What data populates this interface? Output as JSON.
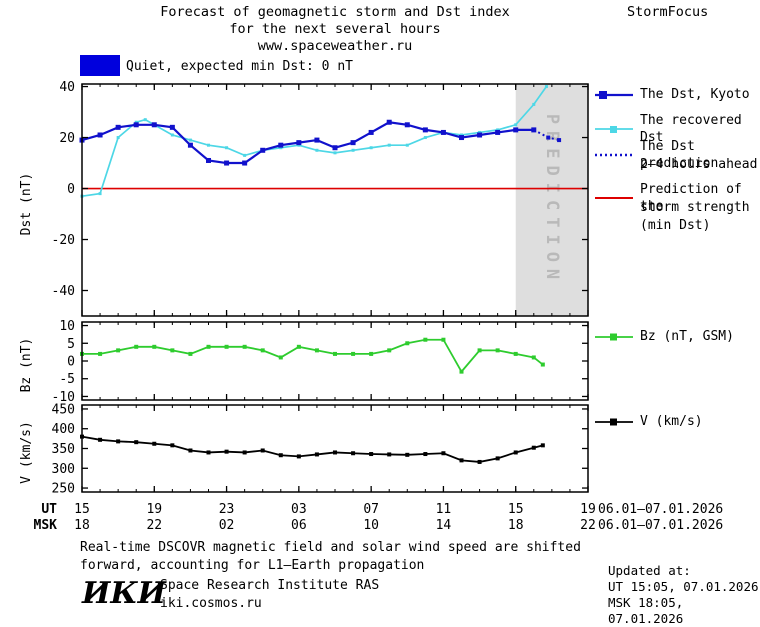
{
  "title": {
    "line1": "Forecast of geomagnetic storm and Dst index",
    "line2": "for the next several hours",
    "line3": "www.spaceweather.ru",
    "brand": "StormFocus"
  },
  "status_banner": {
    "color": "#0000dd",
    "label": "Quiet, expected min Dst: 0 nT"
  },
  "colors": {
    "dst": "#1111cc",
    "recovered": "#4dd7e6",
    "prediction": "#1111cc",
    "strength": "#dd0000",
    "bz": "#2ecc2e",
    "v": "#000000",
    "band": "#dedede",
    "band_text": "#b9b9b9"
  },
  "legend": {
    "dst_kyoto": "The Dst, Kyoto",
    "recovered": "The recovered Dst",
    "prediction_line1": "The Dst prediction",
    "prediction_line2": "2–4 hours ahead",
    "strength_line1": "Prediction of the",
    "strength_line2": "storm strength",
    "strength_line3": "(min Dst)",
    "bz": "Bz (nT, GSM)",
    "v": "V (km/s)"
  },
  "axes": {
    "ut_label": "UT",
    "msk_label": "MSK",
    "ut_ticks": [
      "15",
      "19",
      "23",
      "03",
      "07",
      "11",
      "15",
      "19"
    ],
    "msk_ticks": [
      "18",
      "22",
      "02",
      "06",
      "10",
      "14",
      "18",
      "22"
    ],
    "ut_date": "06.01–07.01.2026",
    "msk_date": "06.01–07.01.2026"
  },
  "prediction_band_label": "PREDICTION",
  "footnote": {
    "line1": "Real-time DSCOVR magnetic field and solar wind speed are shifted",
    "line2": "forward, accounting for L1–Earth propagation"
  },
  "updated": {
    "title": "Updated at:",
    "ut": "UT  15:05, 07.01.2026",
    "msk": "MSK 18:05, 07.01.2026"
  },
  "institute": {
    "logo": "ИКИ",
    "name": "Space Research Institute RAS",
    "site": "iki.cosmos.ru"
  },
  "chart_data": {
    "type": "line",
    "title": "Forecast of geomagnetic storm and Dst index for the next several hours",
    "x_unit": "hours since 06.01.2026 15:00 UT",
    "x_range": [
      0,
      28
    ],
    "x_tick_hours": [
      0,
      4,
      8,
      12,
      16,
      20,
      24,
      28
    ],
    "prediction_band_x": [
      24,
      28
    ],
    "panels": [
      {
        "name": "dst",
        "ylabel": "Dst (nT)",
        "ylim": [
          -50,
          41
        ],
        "yticks": [
          40,
          20,
          0,
          -20,
          -40
        ],
        "zero_line_color": "#dd0000",
        "series": [
          {
            "id": "recovered-dst",
            "name": "The recovered Dst",
            "color": "#4dd7e6",
            "style": "solid",
            "width": 1.7,
            "marker": "square",
            "marker_size": 3,
            "x": [
              0,
              1,
              2,
              3,
              3.5,
              4,
              5,
              6,
              7,
              8,
              9,
              10,
              11,
              12,
              13,
              14,
              15,
              16,
              17,
              18,
              19,
              20,
              21,
              22,
              23,
              24,
              25,
              25.7
            ],
            "y": [
              -3,
              -2,
              20,
              26,
              27,
              25,
              21,
              19,
              17,
              16,
              13,
              15,
              16,
              17,
              15,
              14,
              15,
              16,
              17,
              17,
              20,
              22,
              21,
              22,
              23,
              25,
              33,
              40
            ]
          },
          {
            "id": "dst-kyoto",
            "name": "The Dst, Kyoto",
            "color": "#1111cc",
            "style": "solid",
            "width": 2.2,
            "marker": "square",
            "marker_size": 5,
            "x": [
              0,
              1,
              2,
              3,
              4,
              5,
              6,
              7,
              8,
              9,
              10,
              11,
              12,
              13,
              14,
              15,
              16,
              17,
              18,
              19,
              20,
              21,
              22,
              23,
              24,
              25
            ],
            "y": [
              19,
              21,
              24,
              25,
              25,
              24,
              17,
              11,
              10,
              10,
              15,
              17,
              18,
              19,
              16,
              18,
              22,
              26,
              25,
              23,
              22,
              20,
              21,
              22,
              23,
              23
            ]
          },
          {
            "id": "dst-prediction",
            "name": "The Dst prediction 2-4 hours ahead",
            "color": "#1111cc",
            "style": "dotted",
            "width": 2,
            "marker": "square",
            "marker_size": 4,
            "x": [
              25,
              25.8,
              26.4
            ],
            "y": [
              23,
              20,
              19
            ]
          }
        ]
      },
      {
        "name": "bz",
        "ylabel": "Bz (nT)",
        "ylim": [
          -11,
          11
        ],
        "yticks": [
          10,
          5,
          0,
          -5,
          -10
        ],
        "series": [
          {
            "id": "bz-gsm",
            "name": "Bz (nT, GSM)",
            "color": "#2ecc2e",
            "style": "solid",
            "width": 1.8,
            "marker": "square",
            "marker_size": 4,
            "x": [
              0,
              1,
              2,
              3,
              4,
              5,
              6,
              7,
              8,
              9,
              10,
              11,
              12,
              13,
              14,
              15,
              16,
              17,
              18,
              19,
              20,
              21,
              22,
              23,
              24,
              25,
              25.5
            ],
            "y": [
              2,
              2,
              3,
              4,
              4,
              3,
              2,
              4,
              4,
              4,
              3,
              1,
              4,
              3,
              2,
              2,
              2,
              3,
              5,
              6,
              6,
              -3,
              3,
              3,
              2,
              1,
              -1
            ]
          }
        ]
      },
      {
        "name": "v",
        "ylabel": "V (km/s)",
        "ylim": [
          240,
          460
        ],
        "yticks": [
          450,
          400,
          350,
          300,
          250
        ],
        "series": [
          {
            "id": "solar-wind-speed",
            "name": "V (km/s)",
            "color": "#000000",
            "style": "solid",
            "width": 1.8,
            "marker": "square",
            "marker_size": 4,
            "x": [
              0,
              1,
              2,
              3,
              4,
              5,
              6,
              7,
              8,
              9,
              10,
              11,
              12,
              13,
              14,
              15,
              16,
              17,
              18,
              19,
              20,
              21,
              22,
              23,
              24,
              25,
              25.5
            ],
            "y": [
              380,
              372,
              368,
              366,
              362,
              358,
              345,
              340,
              342,
              340,
              345,
              333,
              330,
              335,
              340,
              338,
              336,
              335,
              334,
              336,
              338,
              320,
              316,
              325,
              340,
              352,
              358
            ]
          }
        ]
      }
    ]
  }
}
